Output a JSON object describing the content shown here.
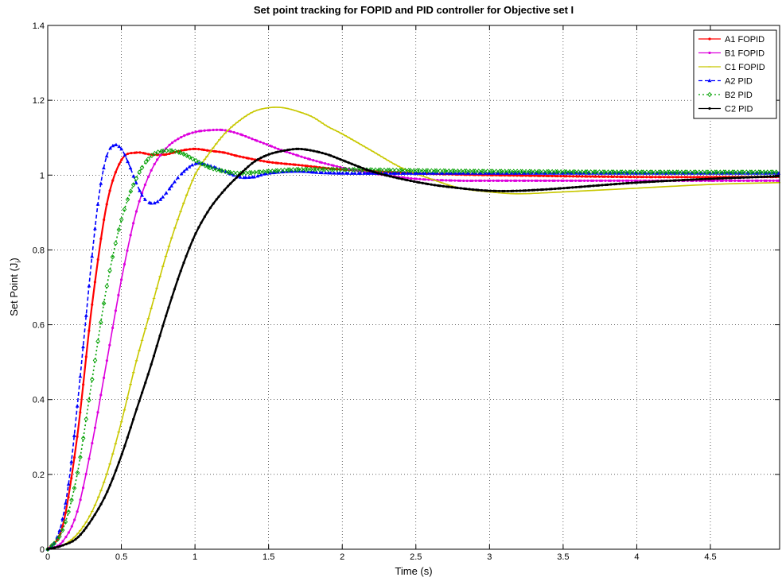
{
  "chart_data": {
    "type": "line",
    "title": "Set point tracking for FOPID and PID controller for Objective set I",
    "xlabel": "Time (s)",
    "ylabel": "Set Point (J",
    "ylabel_sub": "i",
    "ylabel_close": ")",
    "xlim": [
      0,
      4.97
    ],
    "ylim": [
      0,
      1.4
    ],
    "xticks": [
      0,
      0.5,
      1,
      1.5,
      2,
      2.5,
      3,
      3.5,
      4,
      4.5
    ],
    "xtick_labels": [
      "0",
      "0.5",
      "1",
      "1.5",
      "2",
      "2.5",
      "3",
      "3.5",
      "4",
      "4.5"
    ],
    "yticks": [
      0,
      0.2,
      0.4,
      0.6,
      0.8,
      1,
      1.2,
      1.4
    ],
    "ytick_labels": [
      "0",
      "0.2",
      "0.4",
      "0.6",
      "0.8",
      "1",
      "1.2",
      "1.4"
    ],
    "grid": true,
    "legend_position": "top-right",
    "series": [
      {
        "name": "A1 FOPID",
        "color": "#ff0000",
        "marker": "dot",
        "dash": "",
        "width": 2.2,
        "points": [
          [
            0,
            0
          ],
          [
            0.1,
            0.06
          ],
          [
            0.2,
            0.3
          ],
          [
            0.3,
            0.65
          ],
          [
            0.4,
            0.92
          ],
          [
            0.5,
            1.04
          ],
          [
            0.6,
            1.06
          ],
          [
            0.7,
            1.055
          ],
          [
            0.8,
            1.055
          ],
          [
            0.9,
            1.065
          ],
          [
            1.0,
            1.07
          ],
          [
            1.1,
            1.065
          ],
          [
            1.2,
            1.06
          ],
          [
            1.3,
            1.05
          ],
          [
            1.5,
            1.035
          ],
          [
            1.7,
            1.027
          ],
          [
            2.0,
            1.015
          ],
          [
            2.5,
            1.005
          ],
          [
            3.0,
            1.0
          ],
          [
            4.0,
            0.995
          ],
          [
            4.97,
            0.995
          ]
        ]
      },
      {
        "name": "B1 FOPID",
        "color": "#dd00dd",
        "marker": "dot",
        "dash": "",
        "width": 1.6,
        "points": [
          [
            0,
            0
          ],
          [
            0.1,
            0.02
          ],
          [
            0.2,
            0.1
          ],
          [
            0.3,
            0.28
          ],
          [
            0.4,
            0.5
          ],
          [
            0.5,
            0.72
          ],
          [
            0.6,
            0.9
          ],
          [
            0.7,
            1.01
          ],
          [
            0.8,
            1.07
          ],
          [
            0.9,
            1.1
          ],
          [
            1.0,
            1.115
          ],
          [
            1.1,
            1.12
          ],
          [
            1.2,
            1.12
          ],
          [
            1.3,
            1.11
          ],
          [
            1.4,
            1.095
          ],
          [
            1.5,
            1.08
          ],
          [
            1.6,
            1.065
          ],
          [
            1.8,
            1.04
          ],
          [
            2.0,
            1.02
          ],
          [
            2.2,
            1.005
          ],
          [
            2.5,
            0.99
          ],
          [
            2.8,
            0.985
          ],
          [
            3.0,
            0.985
          ],
          [
            4.0,
            0.985
          ],
          [
            4.97,
            0.985
          ]
        ]
      },
      {
        "name": "C1 FOPID",
        "color": "#c8c800",
        "marker": "tick",
        "dash": "",
        "width": 1.6,
        "points": [
          [
            0,
            0
          ],
          [
            0.1,
            0.01
          ],
          [
            0.2,
            0.04
          ],
          [
            0.3,
            0.1
          ],
          [
            0.4,
            0.2
          ],
          [
            0.5,
            0.34
          ],
          [
            0.6,
            0.5
          ],
          [
            0.7,
            0.64
          ],
          [
            0.8,
            0.78
          ],
          [
            0.9,
            0.9
          ],
          [
            1.0,
            1.0
          ],
          [
            1.1,
            1.06
          ],
          [
            1.2,
            1.11
          ],
          [
            1.3,
            1.145
          ],
          [
            1.4,
            1.17
          ],
          [
            1.5,
            1.18
          ],
          [
            1.6,
            1.18
          ],
          [
            1.7,
            1.17
          ],
          [
            1.8,
            1.155
          ],
          [
            1.9,
            1.13
          ],
          [
            2.0,
            1.11
          ],
          [
            2.2,
            1.065
          ],
          [
            2.4,
            1.02
          ],
          [
            2.6,
            0.99
          ],
          [
            2.8,
            0.965
          ],
          [
            3.0,
            0.955
          ],
          [
            3.2,
            0.95
          ],
          [
            3.5,
            0.955
          ],
          [
            4.0,
            0.965
          ],
          [
            4.5,
            0.975
          ],
          [
            4.97,
            0.98
          ]
        ]
      },
      {
        "name": "A2 PID",
        "color": "#0000ff",
        "marker": "triangle",
        "dash": "5,3",
        "width": 1.6,
        "points": [
          [
            0,
            0
          ],
          [
            0.05,
            0.02
          ],
          [
            0.1,
            0.08
          ],
          [
            0.15,
            0.2
          ],
          [
            0.2,
            0.38
          ],
          [
            0.25,
            0.58
          ],
          [
            0.3,
            0.78
          ],
          [
            0.35,
            0.95
          ],
          [
            0.4,
            1.05
          ],
          [
            0.45,
            1.08
          ],
          [
            0.5,
            1.07
          ],
          [
            0.55,
            1.03
          ],
          [
            0.6,
            0.98
          ],
          [
            0.65,
            0.94
          ],
          [
            0.7,
            0.925
          ],
          [
            0.75,
            0.93
          ],
          [
            0.8,
            0.95
          ],
          [
            0.9,
            1.0
          ],
          [
            1.0,
            1.03
          ],
          [
            1.1,
            1.025
          ],
          [
            1.2,
            1.01
          ],
          [
            1.3,
            0.995
          ],
          [
            1.4,
            0.995
          ],
          [
            1.5,
            1.005
          ],
          [
            1.7,
            1.01
          ],
          [
            2.0,
            1.005
          ],
          [
            3.0,
            1.005
          ],
          [
            4.97,
            1.005
          ]
        ]
      },
      {
        "name": "B2 PID",
        "color": "#00a000",
        "marker": "diamond",
        "dash": "2,3",
        "width": 1.6,
        "points": [
          [
            0,
            0
          ],
          [
            0.1,
            0.05
          ],
          [
            0.2,
            0.2
          ],
          [
            0.3,
            0.45
          ],
          [
            0.4,
            0.7
          ],
          [
            0.5,
            0.88
          ],
          [
            0.6,
            0.99
          ],
          [
            0.7,
            1.05
          ],
          [
            0.8,
            1.065
          ],
          [
            0.9,
            1.06
          ],
          [
            1.0,
            1.04
          ],
          [
            1.1,
            1.02
          ],
          [
            1.2,
            1.01
          ],
          [
            1.3,
            1.005
          ],
          [
            1.5,
            1.01
          ],
          [
            1.7,
            1.015
          ],
          [
            2.0,
            1.015
          ],
          [
            2.5,
            1.012
          ],
          [
            3.0,
            1.01
          ],
          [
            4.0,
            1.008
          ],
          [
            4.97,
            1.008
          ]
        ]
      },
      {
        "name": "C2 PID",
        "color": "#000000",
        "marker": "dot",
        "dash": "",
        "width": 2.4,
        "points": [
          [
            0,
            0
          ],
          [
            0.1,
            0.01
          ],
          [
            0.2,
            0.03
          ],
          [
            0.3,
            0.08
          ],
          [
            0.4,
            0.15
          ],
          [
            0.5,
            0.25
          ],
          [
            0.6,
            0.37
          ],
          [
            0.7,
            0.49
          ],
          [
            0.8,
            0.62
          ],
          [
            0.9,
            0.74
          ],
          [
            1.0,
            0.84
          ],
          [
            1.1,
            0.91
          ],
          [
            1.2,
            0.96
          ],
          [
            1.3,
            1.0
          ],
          [
            1.4,
            1.035
          ],
          [
            1.5,
            1.055
          ],
          [
            1.6,
            1.065
          ],
          [
            1.7,
            1.07
          ],
          [
            1.8,
            1.065
          ],
          [
            1.9,
            1.055
          ],
          [
            2.0,
            1.04
          ],
          [
            2.2,
            1.01
          ],
          [
            2.4,
            0.99
          ],
          [
            2.6,
            0.975
          ],
          [
            2.8,
            0.965
          ],
          [
            3.0,
            0.958
          ],
          [
            3.2,
            0.958
          ],
          [
            3.5,
            0.965
          ],
          [
            4.0,
            0.98
          ],
          [
            4.5,
            0.99
          ],
          [
            4.97,
            0.997
          ]
        ]
      }
    ]
  }
}
